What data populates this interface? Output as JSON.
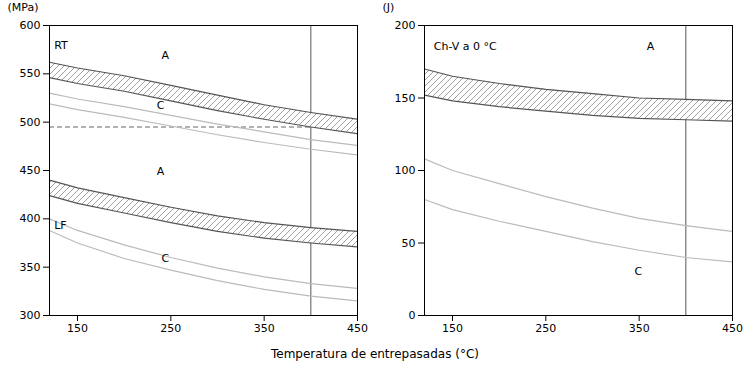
{
  "chart_data": [
    {
      "type": "line",
      "ylabel": "(MPa)",
      "x": [
        120,
        150,
        200,
        250,
        300,
        350,
        400,
        450
      ],
      "xlim": [
        120,
        450
      ],
      "ylim": [
        300,
        600
      ],
      "xticks": [
        150,
        250,
        350,
        450
      ],
      "yticks": [
        300,
        350,
        400,
        450,
        500,
        550,
        600
      ],
      "grid": false,
      "hlines": [
        {
          "y": 495,
          "color": "#666666",
          "line_style": "dashed"
        }
      ],
      "vlines": [
        {
          "x": 400,
          "color": "#555555",
          "line_style": "solid"
        }
      ],
      "series": [
        {
          "type": "band",
          "color": "#555555",
          "hatch_color": "#888888",
          "upper": [
            562,
            556,
            548,
            538,
            528,
            518,
            510,
            503
          ],
          "lower": [
            546,
            540,
            532,
            522,
            512,
            503,
            495,
            488
          ]
        },
        {
          "type": "line",
          "color": "#bbbbbb",
          "upper": [
            530,
            524,
            516,
            507,
            498,
            490,
            482,
            476
          ],
          "lower": [
            519,
            513,
            505,
            496,
            487,
            479,
            472,
            466
          ]
        },
        {
          "type": "band",
          "color": "#555555",
          "hatch_color": "#888888",
          "upper": [
            440,
            432,
            422,
            412,
            403,
            396,
            391,
            387
          ],
          "lower": [
            424,
            416,
            406,
            396,
            387,
            380,
            375,
            371
          ]
        },
        {
          "type": "line",
          "color": "#bbbbbb",
          "upper": [
            400,
            388,
            373,
            360,
            349,
            340,
            333,
            328
          ],
          "lower": [
            388,
            375,
            359,
            347,
            336,
            327,
            320,
            315
          ]
        }
      ],
      "annotations": [
        {
          "text": "RT",
          "x": 125,
          "y": 576
        },
        {
          "text": "A",
          "x": 240,
          "y": 565
        },
        {
          "text": "C",
          "x": 235,
          "y": 514
        },
        {
          "text": "LF",
          "x": 125,
          "y": 390
        },
        {
          "text": "A",
          "x": 235,
          "y": 445
        },
        {
          "text": "C",
          "x": 240,
          "y": 355
        }
      ]
    },
    {
      "type": "line",
      "ylabel": "(J)",
      "x": [
        120,
        150,
        200,
        250,
        300,
        350,
        400,
        450
      ],
      "xlim": [
        120,
        450
      ],
      "ylim": [
        0,
        200
      ],
      "xticks": [
        150,
        250,
        350,
        450
      ],
      "yticks": [
        0,
        50,
        100,
        150,
        200
      ],
      "grid": false,
      "hlines": [],
      "vlines": [
        {
          "x": 400,
          "color": "#555555",
          "line_style": "solid"
        }
      ],
      "series": [
        {
          "type": "band",
          "color": "#555555",
          "hatch_color": "#888888",
          "upper": [
            170,
            165,
            160,
            156,
            153,
            150,
            149,
            148
          ],
          "lower": [
            152,
            148,
            144,
            141,
            138,
            136,
            135,
            134
          ]
        },
        {
          "type": "line",
          "color": "#bbbbbb",
          "upper": [
            108,
            100,
            91,
            82,
            74,
            67,
            62,
            58
          ],
          "lower": [
            80,
            73,
            65,
            58,
            51,
            45,
            40,
            37
          ]
        }
      ],
      "annotations": [
        {
          "text": "Ch-V a 0 °C",
          "x": 130,
          "y": 183
        },
        {
          "text": "A",
          "x": 358,
          "y": 183
        },
        {
          "text": "C",
          "x": 345,
          "y": 28
        }
      ]
    }
  ],
  "xlabel": "Temperatura de entrepasadas (°C)"
}
